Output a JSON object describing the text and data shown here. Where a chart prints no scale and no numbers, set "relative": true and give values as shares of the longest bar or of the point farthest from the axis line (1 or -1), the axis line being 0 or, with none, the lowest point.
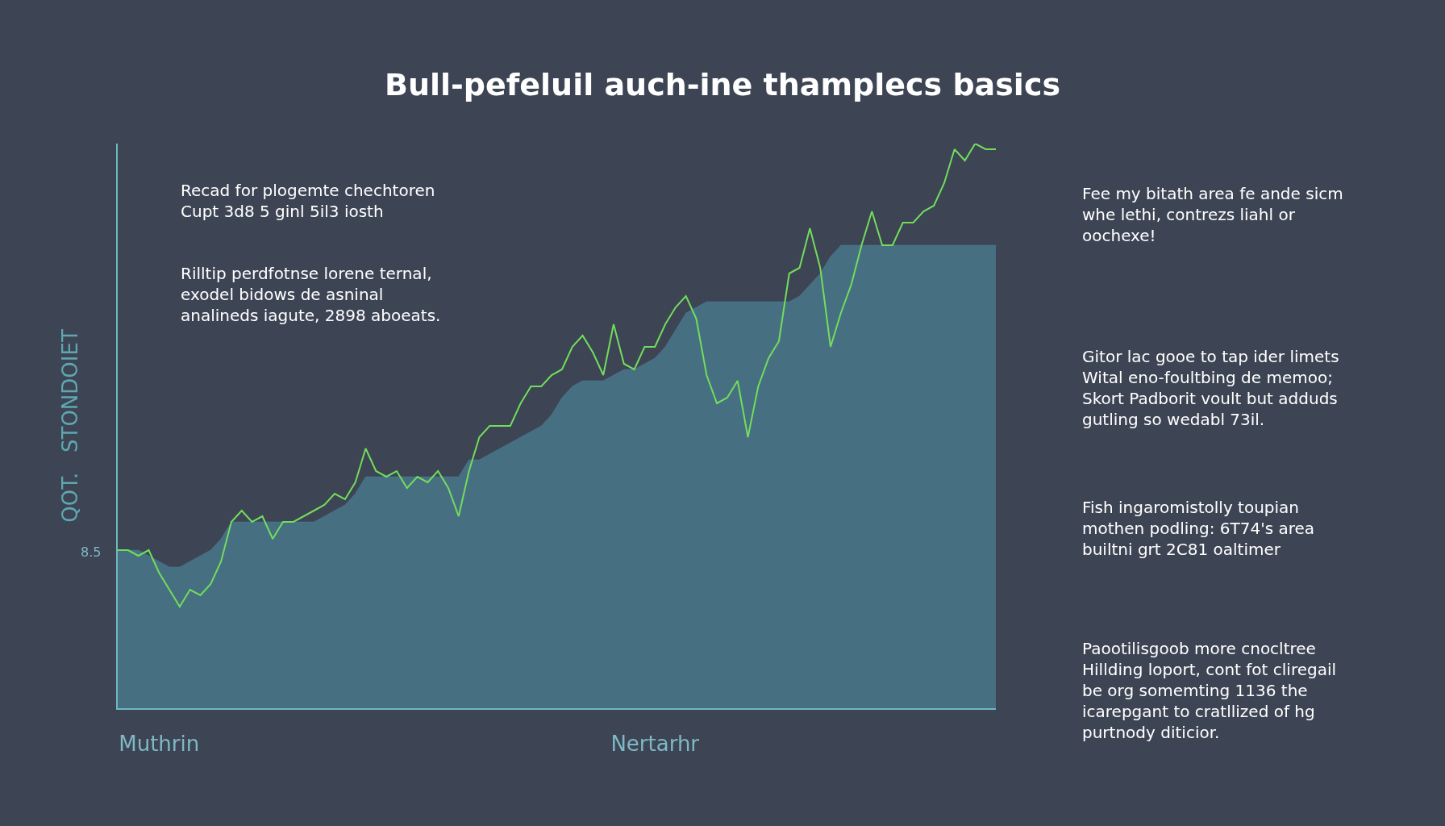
{
  "chart_data": {
    "type": "line",
    "title": "Bull-pefeluil auch-ine thamplecs basics",
    "ylabel": "QOT.   STONDOIET",
    "relative": true,
    "grid": false,
    "marker": "none",
    "line_style": "solid",
    "categories": [
      null,
      null,
      null,
      null,
      "Muthrin",
      null,
      null,
      null,
      null,
      null,
      null,
      null,
      null,
      null,
      null,
      null,
      null,
      null,
      null,
      null,
      null,
      null,
      null,
      null,
      null,
      null,
      null,
      null,
      null,
      null,
      null,
      null,
      null,
      null,
      null,
      null,
      null,
      null,
      null,
      null,
      null,
      null,
      null,
      null,
      null,
      null,
      null,
      null,
      null,
      null,
      null,
      null,
      "Nertarhr",
      null,
      null,
      null,
      null,
      null,
      null,
      null,
      null,
      null,
      null,
      null,
      null,
      null,
      null,
      null,
      null,
      null,
      null,
      null,
      null,
      null,
      null,
      null,
      null,
      null,
      null,
      null,
      null,
      null,
      null,
      null,
      null,
      null
    ],
    "series": [
      {
        "type": "area",
        "color": "#4b7e92",
        "values": [
          0.28,
          0.28,
          0.28,
          0.27,
          0.26,
          0.25,
          0.25,
          0.26,
          0.27,
          0.28,
          0.3,
          0.33,
          0.33,
          0.33,
          0.33,
          0.33,
          0.33,
          0.33,
          0.33,
          0.33,
          0.34,
          0.35,
          0.36,
          0.38,
          0.41,
          0.41,
          0.41,
          0.41,
          0.41,
          0.41,
          0.41,
          0.41,
          0.41,
          0.41,
          0.44,
          0.44,
          0.45,
          0.46,
          0.47,
          0.48,
          0.49,
          0.5,
          0.52,
          0.55,
          0.57,
          0.58,
          0.58,
          0.58,
          0.59,
          0.6,
          0.6,
          0.61,
          0.62,
          0.64,
          0.67,
          0.7,
          0.71,
          0.72,
          0.72,
          0.72,
          0.72,
          0.72,
          0.72,
          0.72,
          0.72,
          0.72,
          0.73,
          0.75,
          0.77,
          0.8,
          0.82,
          0.82,
          0.82,
          0.82,
          0.82,
          0.82,
          0.82,
          0.82,
          0.82,
          0.82,
          0.82,
          0.82,
          0.82,
          0.82,
          0.82,
          0.82
        ]
      },
      {
        "color": "#72dd5c",
        "values": [
          0.28,
          0.28,
          0.27,
          0.28,
          0.24,
          0.21,
          0.18,
          0.21,
          0.2,
          0.22,
          0.26,
          0.33,
          0.35,
          0.33,
          0.34,
          0.3,
          0.33,
          0.33,
          0.34,
          0.35,
          0.36,
          0.38,
          0.37,
          0.4,
          0.46,
          0.42,
          0.41,
          0.42,
          0.39,
          0.41,
          0.4,
          0.42,
          0.39,
          0.34,
          0.42,
          0.48,
          0.5,
          0.5,
          0.5,
          0.54,
          0.57,
          0.57,
          0.59,
          0.6,
          0.64,
          0.66,
          0.63,
          0.59,
          0.68,
          0.61,
          0.6,
          0.64,
          0.64,
          0.68,
          0.71,
          0.73,
          0.69,
          0.59,
          0.54,
          0.55,
          0.58,
          0.48,
          0.57,
          0.62,
          0.65,
          0.77,
          0.78,
          0.85,
          0.78,
          0.64,
          0.7,
          0.75,
          0.82,
          0.88,
          0.82,
          0.82,
          0.86,
          0.86,
          0.88,
          0.89,
          0.93,
          0.99,
          0.97,
          1.0,
          0.99,
          0.99
        ]
      }
    ],
    "annotations": [
      "Recad for plogemte chechtoren\nCupt 3d8 5 ginl 5il3 iosth",
      "Rilltip perdfotnse lorene ternal,\nexodel bidows de asninal\nanalineds iagute, 2898 aboeats.",
      "Fee my bitath area fe ande sicm\nwhe lethi, contrezs liahl or\noochexe!",
      "Gitor lac gooe to tap ider limets\nWital eno-foultbing de memoo;\nSkort Padborit voult but adduds\ngutling so wedabl 73il.",
      "Fish ingaromistolly toupian\nmothen podling: 6T74's area\nbuiltni grt 2C81 oaltimer",
      "Paootilisgoob more cnocltree\nHillding loport, cont fot cliregail\nbe org somemting 1136 the\nicarepgant to cratllized of hg\npurtnody diticior.",
      "8.5"
    ]
  }
}
